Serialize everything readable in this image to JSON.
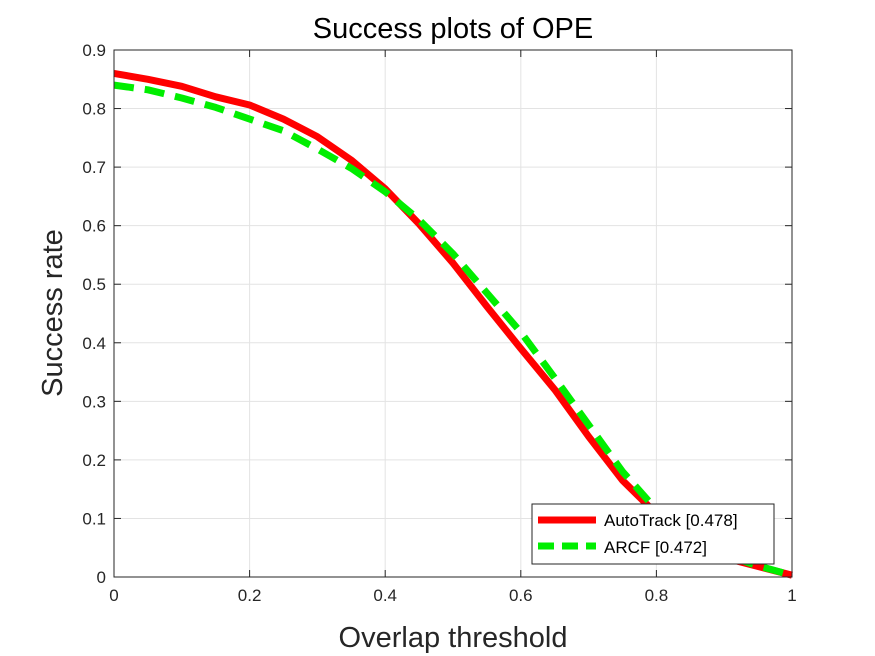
{
  "chart_data": {
    "type": "line",
    "title": "Success plots of OPE",
    "xlabel": "Overlap threshold",
    "ylabel": "Success rate",
    "xlim": [
      0,
      1
    ],
    "ylim": [
      0,
      0.9
    ],
    "x_ticks": [
      0,
      0.2,
      0.4,
      0.6,
      0.8,
      1
    ],
    "x_tick_labels": [
      "0",
      "0.2",
      "0.4",
      "0.6",
      "0.8",
      "1"
    ],
    "y_ticks": [
      0,
      0.1,
      0.2,
      0.3,
      0.4,
      0.5,
      0.6,
      0.7,
      0.8,
      0.9
    ],
    "y_tick_labels": [
      "0",
      "0.1",
      "0.2",
      "0.3",
      "0.4",
      "0.5",
      "0.6",
      "0.7",
      "0.8",
      "0.9"
    ],
    "grid": true,
    "legend_position": "bottom-right",
    "x": [
      0,
      0.05,
      0.1,
      0.15,
      0.2,
      0.25,
      0.3,
      0.35,
      0.4,
      0.45,
      0.5,
      0.55,
      0.6,
      0.65,
      0.7,
      0.75,
      0.8,
      0.85,
      0.9,
      0.95,
      1
    ],
    "series": [
      {
        "name": "AutoTrack [0.478]",
        "color": "#ff0000",
        "style": "solid",
        "values": [
          0.86,
          0.85,
          0.838,
          0.82,
          0.806,
          0.782,
          0.752,
          0.712,
          0.663,
          0.603,
          0.536,
          0.462,
          0.39,
          0.32,
          0.24,
          0.165,
          0.108,
          0.064,
          0.033,
          0.018,
          0.003
        ]
      },
      {
        "name": "ARCF [0.472]",
        "color": "#00ee00",
        "style": "dashed",
        "values": [
          0.84,
          0.832,
          0.818,
          0.802,
          0.782,
          0.762,
          0.731,
          0.698,
          0.658,
          0.61,
          0.552,
          0.485,
          0.418,
          0.34,
          0.26,
          0.18,
          0.115,
          0.07,
          0.038,
          0.019,
          0.003
        ]
      }
    ]
  }
}
